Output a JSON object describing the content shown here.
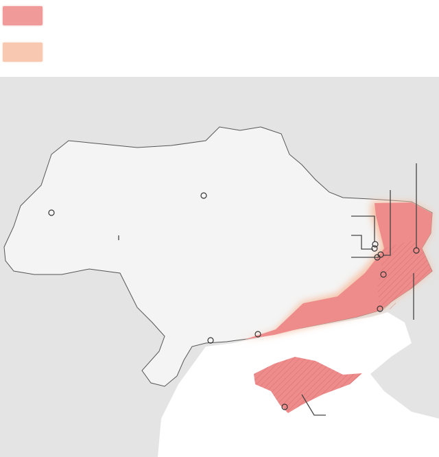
{
  "legend": {
    "items": [
      {
        "color": "#f09a9a"
      },
      {
        "color": "#f8c8b0"
      }
    ]
  },
  "map": {
    "land_color": "#e4e4e4",
    "country_color": "#f4f4f4",
    "sea_color": "#ffffff",
    "occupied_color": "#ee8c8c",
    "contested_color": "#f6c3a8",
    "hatch_color": "#c96060",
    "markers": [
      "city",
      "city",
      "city",
      "city",
      "city",
      "city",
      "city",
      "city",
      "city",
      "city",
      "city",
      "city"
    ]
  }
}
